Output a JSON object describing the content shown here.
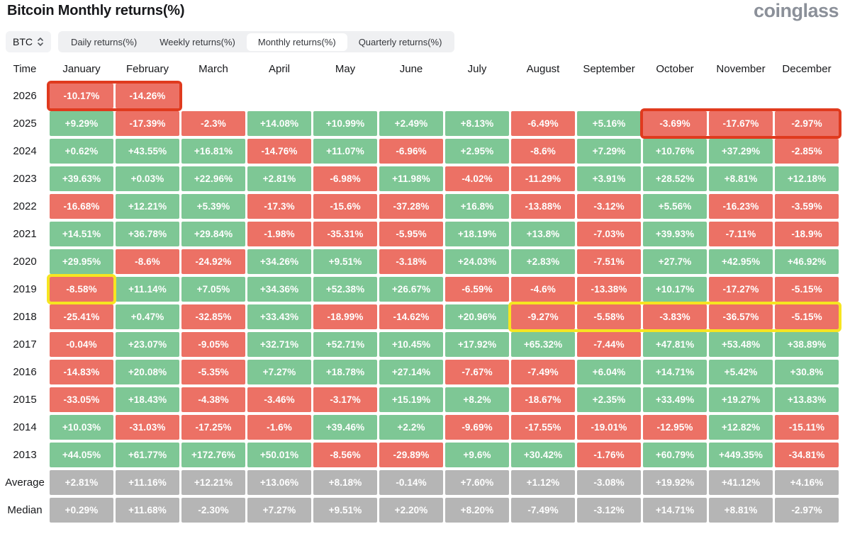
{
  "header": {
    "title": "Bitcoin Monthly returns(%)",
    "logo": "coinglass"
  },
  "controls": {
    "symbol": "BTC",
    "tabs": [
      {
        "label": "Daily returns(%)",
        "active": false
      },
      {
        "label": "Weekly returns(%)",
        "active": false
      },
      {
        "label": "Monthly returns(%)",
        "active": true
      },
      {
        "label": "Quarterly returns(%)",
        "active": false
      }
    ]
  },
  "chart_data": {
    "type": "heatmap",
    "title": "Bitcoin Monthly returns(%)",
    "time_header": "Time",
    "months": [
      "January",
      "February",
      "March",
      "April",
      "May",
      "June",
      "July",
      "August",
      "September",
      "October",
      "November",
      "December"
    ],
    "palette": {
      "positive": "#7ec795",
      "negative": "#ec7165",
      "stat": "#b5b5b5",
      "highlight_red": "#e03a1e",
      "highlight_yellow": "#f6e521"
    },
    "rows": [
      {
        "label": "2026",
        "cells": [
          "-10.17%",
          "-14.26%",
          null,
          null,
          null,
          null,
          null,
          null,
          null,
          null,
          null,
          null
        ],
        "highlight": {
          "start": 0,
          "end": 1,
          "color": "red"
        }
      },
      {
        "label": "2025",
        "cells": [
          "+9.29%",
          "-17.39%",
          "-2.3%",
          "+14.08%",
          "+10.99%",
          "+2.49%",
          "+8.13%",
          "-6.49%",
          "+5.16%",
          "-3.69%",
          "-17.67%",
          "-2.97%"
        ],
        "highlight": {
          "start": 9,
          "end": 11,
          "color": "red"
        }
      },
      {
        "label": "2024",
        "cells": [
          "+0.62%",
          "+43.55%",
          "+16.81%",
          "-14.76%",
          "+11.07%",
          "-6.96%",
          "+2.95%",
          "-8.6%",
          "+7.29%",
          "+10.76%",
          "+37.29%",
          "-2.85%"
        ]
      },
      {
        "label": "2023",
        "cells": [
          "+39.63%",
          "+0.03%",
          "+22.96%",
          "+2.81%",
          "-6.98%",
          "+11.98%",
          "-4.02%",
          "-11.29%",
          "+3.91%",
          "+28.52%",
          "+8.81%",
          "+12.18%"
        ]
      },
      {
        "label": "2022",
        "cells": [
          "-16.68%",
          "+12.21%",
          "+5.39%",
          "-17.3%",
          "-15.6%",
          "-37.28%",
          "+16.8%",
          "-13.88%",
          "-3.12%",
          "+5.56%",
          "-16.23%",
          "-3.59%"
        ]
      },
      {
        "label": "2021",
        "cells": [
          "+14.51%",
          "+36.78%",
          "+29.84%",
          "-1.98%",
          "-35.31%",
          "-5.95%",
          "+18.19%",
          "+13.8%",
          "-7.03%",
          "+39.93%",
          "-7.11%",
          "-18.9%"
        ]
      },
      {
        "label": "2020",
        "cells": [
          "+29.95%",
          "-8.6%",
          "-24.92%",
          "+34.26%",
          "+9.51%",
          "-3.18%",
          "+24.03%",
          "+2.83%",
          "-7.51%",
          "+27.7%",
          "+42.95%",
          "+46.92%"
        ]
      },
      {
        "label": "2019",
        "cells": [
          "-8.58%",
          "+11.14%",
          "+7.05%",
          "+34.36%",
          "+52.38%",
          "+26.67%",
          "-6.59%",
          "-4.6%",
          "-13.38%",
          "+10.17%",
          "-17.27%",
          "-5.15%"
        ],
        "highlight": {
          "start": 0,
          "end": 0,
          "color": "yellow"
        }
      },
      {
        "label": "2018",
        "cells": [
          "-25.41%",
          "+0.47%",
          "-32.85%",
          "+33.43%",
          "-18.99%",
          "-14.62%",
          "+20.96%",
          "-9.27%",
          "-5.58%",
          "-3.83%",
          "-36.57%",
          "-5.15%"
        ],
        "highlight": {
          "start": 7,
          "end": 11,
          "color": "yellow"
        }
      },
      {
        "label": "2017",
        "cells": [
          "-0.04%",
          "+23.07%",
          "-9.05%",
          "+32.71%",
          "+52.71%",
          "+10.45%",
          "+17.92%",
          "+65.32%",
          "-7.44%",
          "+47.81%",
          "+53.48%",
          "+38.89%"
        ]
      },
      {
        "label": "2016",
        "cells": [
          "-14.83%",
          "+20.08%",
          "-5.35%",
          "+7.27%",
          "+18.78%",
          "+27.14%",
          "-7.67%",
          "-7.49%",
          "+6.04%",
          "+14.71%",
          "+5.42%",
          "+30.8%"
        ]
      },
      {
        "label": "2015",
        "cells": [
          "-33.05%",
          "+18.43%",
          "-4.38%",
          "-3.46%",
          "-3.17%",
          "+15.19%",
          "+8.2%",
          "-18.67%",
          "+2.35%",
          "+33.49%",
          "+19.27%",
          "+13.83%"
        ]
      },
      {
        "label": "2014",
        "cells": [
          "+10.03%",
          "-31.03%",
          "-17.25%",
          "-1.6%",
          "+39.46%",
          "+2.2%",
          "-9.69%",
          "-17.55%",
          "-19.01%",
          "-12.95%",
          "+12.82%",
          "-15.11%"
        ]
      },
      {
        "label": "2013",
        "cells": [
          "+44.05%",
          "+61.77%",
          "+172.76%",
          "+50.01%",
          "-8.56%",
          "-29.89%",
          "+9.6%",
          "+30.42%",
          "-1.76%",
          "+60.79%",
          "+449.35%",
          "-34.81%"
        ]
      },
      {
        "label": "Average",
        "stat": true,
        "cells": [
          "+2.81%",
          "+11.16%",
          "+12.21%",
          "+13.06%",
          "+8.18%",
          "-0.14%",
          "+7.60%",
          "+1.12%",
          "-3.08%",
          "+19.92%",
          "+41.12%",
          "+4.16%"
        ]
      },
      {
        "label": "Median",
        "stat": true,
        "cells": [
          "+0.29%",
          "+11.68%",
          "-2.30%",
          "+7.27%",
          "+9.51%",
          "+2.20%",
          "+8.20%",
          "-7.49%",
          "-3.12%",
          "+14.71%",
          "+8.81%",
          "-2.97%"
        ]
      }
    ]
  }
}
